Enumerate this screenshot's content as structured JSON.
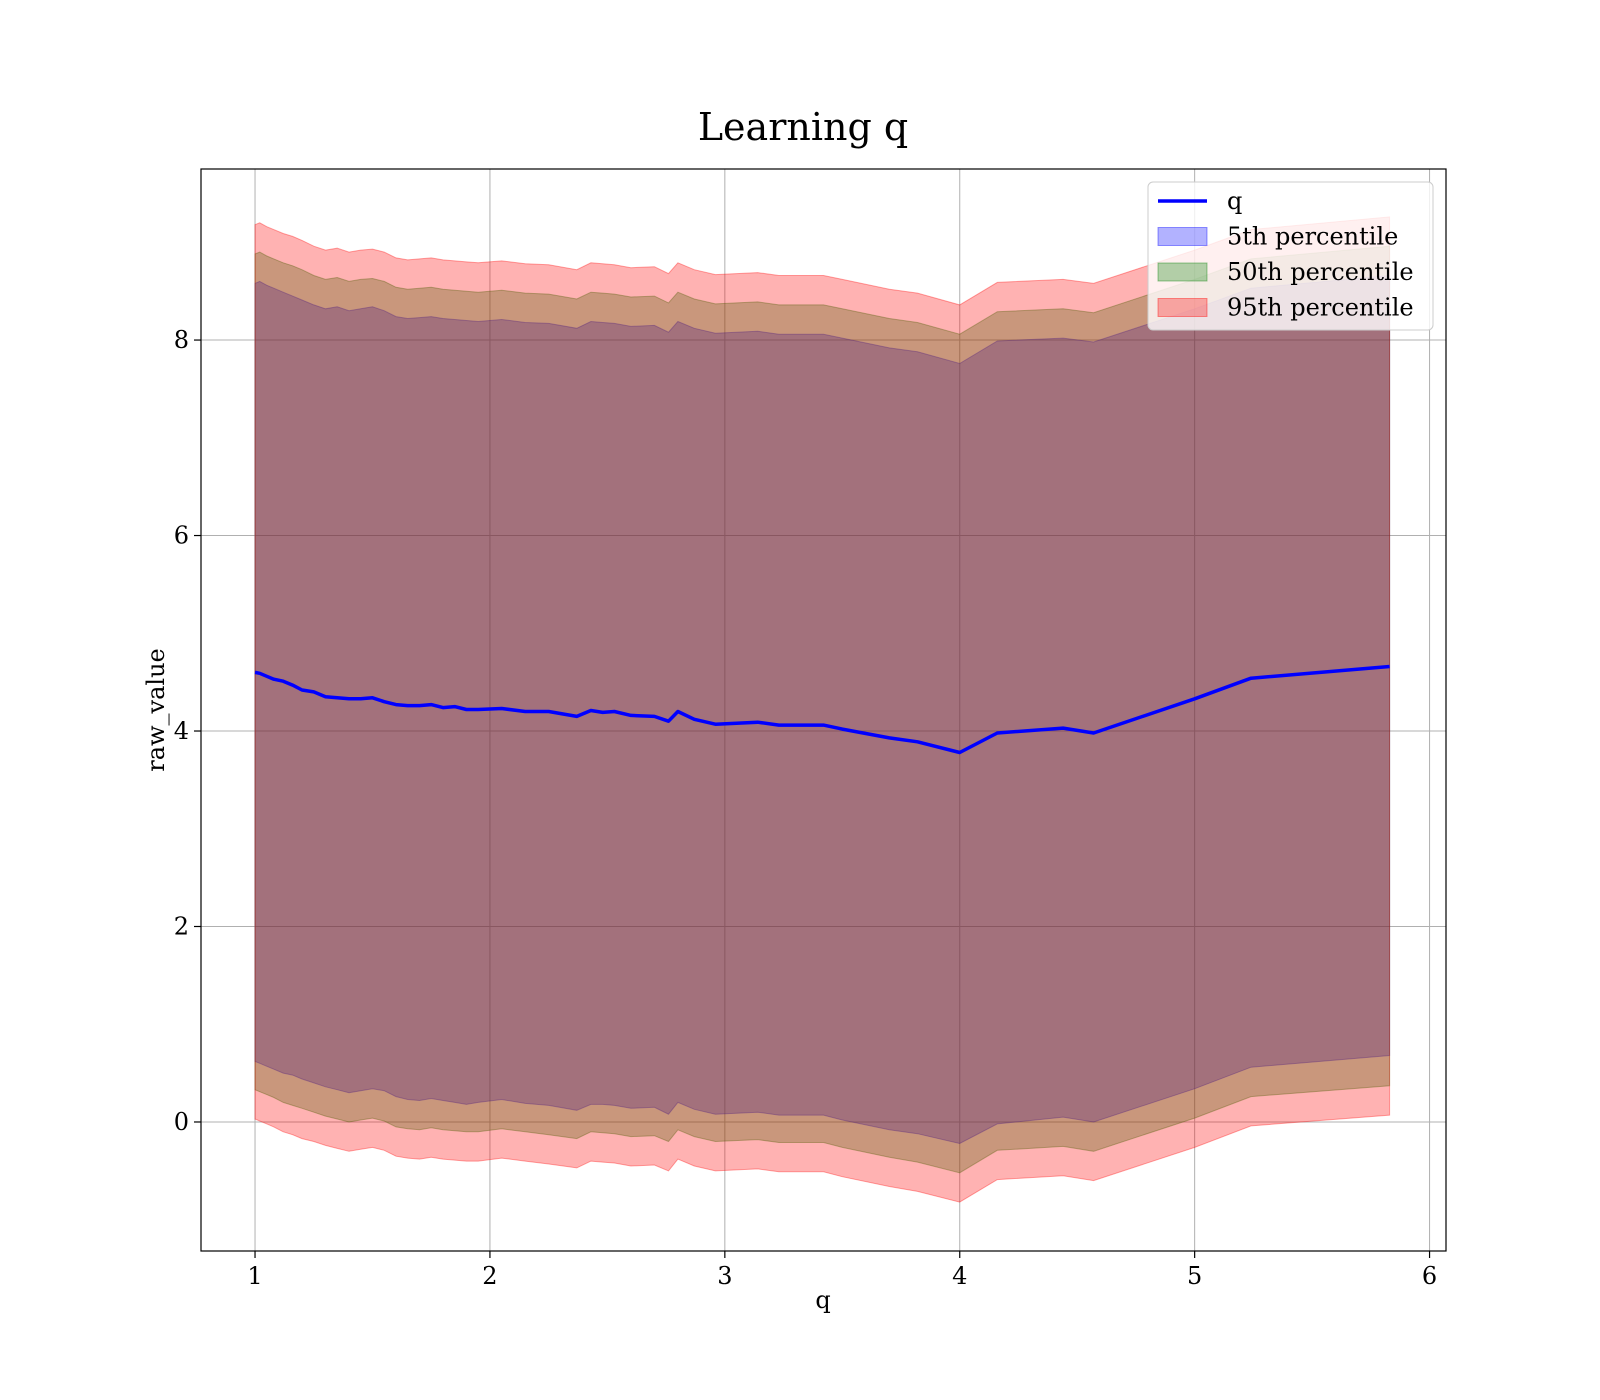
{
  "chart_data": {
    "type": "area",
    "title": "Learning q",
    "xlabel": "q",
    "ylabel": "raw_value",
    "xlim": [
      0.77,
      6.07
    ],
    "ylim": [
      -1.32,
      9.75
    ],
    "xticks": [
      1,
      2,
      3,
      4,
      5,
      6
    ],
    "yticks": [
      0,
      2,
      4,
      6,
      8
    ],
    "xtick_labels": [
      "1",
      "2",
      "3",
      "4",
      "5",
      "6"
    ],
    "ytick_labels": [
      "0",
      "2",
      "4",
      "6",
      "8"
    ],
    "grid": true,
    "legend_position": "top-right",
    "x": [
      1.0,
      1.02,
      1.05,
      1.08,
      1.12,
      1.16,
      1.2,
      1.25,
      1.3,
      1.35,
      1.4,
      1.45,
      1.5,
      1.55,
      1.6,
      1.65,
      1.7,
      1.75,
      1.8,
      1.85,
      1.9,
      1.95,
      2.05,
      2.15,
      2.25,
      2.37,
      2.43,
      2.48,
      2.53,
      2.6,
      2.7,
      2.76,
      2.8,
      2.87,
      2.96,
      3.14,
      3.23,
      3.42,
      3.5,
      3.7,
      3.82,
      4.0,
      4.16,
      4.44,
      4.57,
      5.0,
      5.24,
      5.83
    ],
    "q": [
      4.6,
      4.59,
      4.56,
      4.53,
      4.51,
      4.47,
      4.42,
      4.4,
      4.35,
      4.34,
      4.33,
      4.33,
      4.34,
      4.3,
      4.27,
      4.26,
      4.26,
      4.27,
      4.24,
      4.25,
      4.22,
      4.22,
      4.23,
      4.2,
      4.2,
      4.15,
      4.21,
      4.19,
      4.2,
      4.16,
      4.15,
      4.1,
      4.2,
      4.12,
      4.07,
      4.09,
      4.06,
      4.06,
      4.02,
      3.93,
      3.89,
      3.78,
      3.98,
      4.03,
      3.98,
      4.33,
      4.54,
      4.66
    ],
    "series": [
      {
        "name": "5th percentile",
        "color": "#0000ff",
        "lower": [
          0.62,
          0.6,
          0.57,
          0.54,
          0.5,
          0.48,
          0.44,
          0.4,
          0.36,
          0.33,
          0.3,
          0.32,
          0.34,
          0.32,
          0.26,
          0.23,
          0.22,
          0.24,
          0.22,
          0.2,
          0.18,
          0.2,
          0.23,
          0.19,
          0.17,
          0.12,
          0.18,
          0.18,
          0.17,
          0.14,
          0.15,
          0.08,
          0.2,
          0.13,
          0.08,
          0.1,
          0.07,
          0.07,
          0.02,
          -0.08,
          -0.12,
          -0.22,
          -0.02,
          0.05,
          0.0,
          0.34,
          0.56,
          0.68
        ],
        "upper": [
          8.58,
          8.6,
          8.56,
          8.53,
          8.49,
          8.45,
          8.41,
          8.36,
          8.32,
          8.34,
          8.3,
          8.32,
          8.34,
          8.3,
          8.24,
          8.22,
          8.23,
          8.24,
          8.22,
          8.21,
          8.2,
          8.19,
          8.21,
          8.18,
          8.17,
          8.12,
          8.19,
          8.18,
          8.17,
          8.14,
          8.15,
          8.08,
          8.19,
          8.12,
          8.07,
          8.09,
          8.06,
          8.06,
          8.02,
          7.92,
          7.88,
          7.76,
          7.99,
          8.02,
          7.98,
          8.32,
          8.53,
          8.66
        ]
      },
      {
        "name": "50th percentile",
        "color": "#008000",
        "lower": [
          0.33,
          0.31,
          0.28,
          0.25,
          0.2,
          0.17,
          0.14,
          0.1,
          0.06,
          0.03,
          0.0,
          0.02,
          0.04,
          0.01,
          -0.05,
          -0.07,
          -0.08,
          -0.06,
          -0.08,
          -0.09,
          -0.1,
          -0.1,
          -0.07,
          -0.1,
          -0.13,
          -0.17,
          -0.1,
          -0.11,
          -0.12,
          -0.15,
          -0.14,
          -0.2,
          -0.08,
          -0.15,
          -0.2,
          -0.18,
          -0.21,
          -0.21,
          -0.26,
          -0.36,
          -0.41,
          -0.52,
          -0.29,
          -0.25,
          -0.3,
          0.04,
          0.26,
          0.37
        ],
        "upper": [
          8.88,
          8.9,
          8.86,
          8.83,
          8.79,
          8.76,
          8.72,
          8.66,
          8.62,
          8.64,
          8.6,
          8.62,
          8.63,
          8.6,
          8.54,
          8.52,
          8.53,
          8.54,
          8.52,
          8.51,
          8.5,
          8.49,
          8.51,
          8.48,
          8.47,
          8.42,
          8.49,
          8.48,
          8.47,
          8.44,
          8.45,
          8.38,
          8.49,
          8.42,
          8.37,
          8.39,
          8.36,
          8.36,
          8.32,
          8.22,
          8.18,
          8.06,
          8.29,
          8.32,
          8.28,
          8.62,
          8.83,
          8.96
        ]
      },
      {
        "name": "95th percentile",
        "color": "#ff0000",
        "lower": [
          0.03,
          0.01,
          -0.02,
          -0.05,
          -0.1,
          -0.13,
          -0.17,
          -0.2,
          -0.24,
          -0.27,
          -0.3,
          -0.28,
          -0.26,
          -0.29,
          -0.35,
          -0.37,
          -0.38,
          -0.36,
          -0.38,
          -0.39,
          -0.4,
          -0.4,
          -0.37,
          -0.4,
          -0.43,
          -0.47,
          -0.4,
          -0.41,
          -0.42,
          -0.45,
          -0.44,
          -0.5,
          -0.38,
          -0.45,
          -0.5,
          -0.48,
          -0.51,
          -0.51,
          -0.56,
          -0.66,
          -0.71,
          -0.82,
          -0.59,
          -0.55,
          -0.6,
          -0.26,
          -0.04,
          0.07
        ],
        "upper": [
          9.18,
          9.2,
          9.16,
          9.13,
          9.09,
          9.06,
          9.02,
          8.96,
          8.92,
          8.94,
          8.9,
          8.92,
          8.93,
          8.9,
          8.84,
          8.82,
          8.83,
          8.84,
          8.82,
          8.81,
          8.8,
          8.79,
          8.81,
          8.78,
          8.77,
          8.72,
          8.79,
          8.78,
          8.77,
          8.74,
          8.75,
          8.68,
          8.79,
          8.72,
          8.67,
          8.69,
          8.66,
          8.66,
          8.62,
          8.52,
          8.48,
          8.36,
          8.59,
          8.62,
          8.58,
          8.92,
          9.13,
          9.26
        ]
      }
    ],
    "legend": [
      {
        "label": "q",
        "kind": "line",
        "color": "#0000ff"
      },
      {
        "label": "5th percentile",
        "kind": "patch",
        "color": "#0000ff"
      },
      {
        "label": "50th percentile",
        "kind": "patch",
        "color": "#008000"
      },
      {
        "label": "95th percentile",
        "kind": "patch",
        "color": "#ff0000"
      }
    ]
  }
}
